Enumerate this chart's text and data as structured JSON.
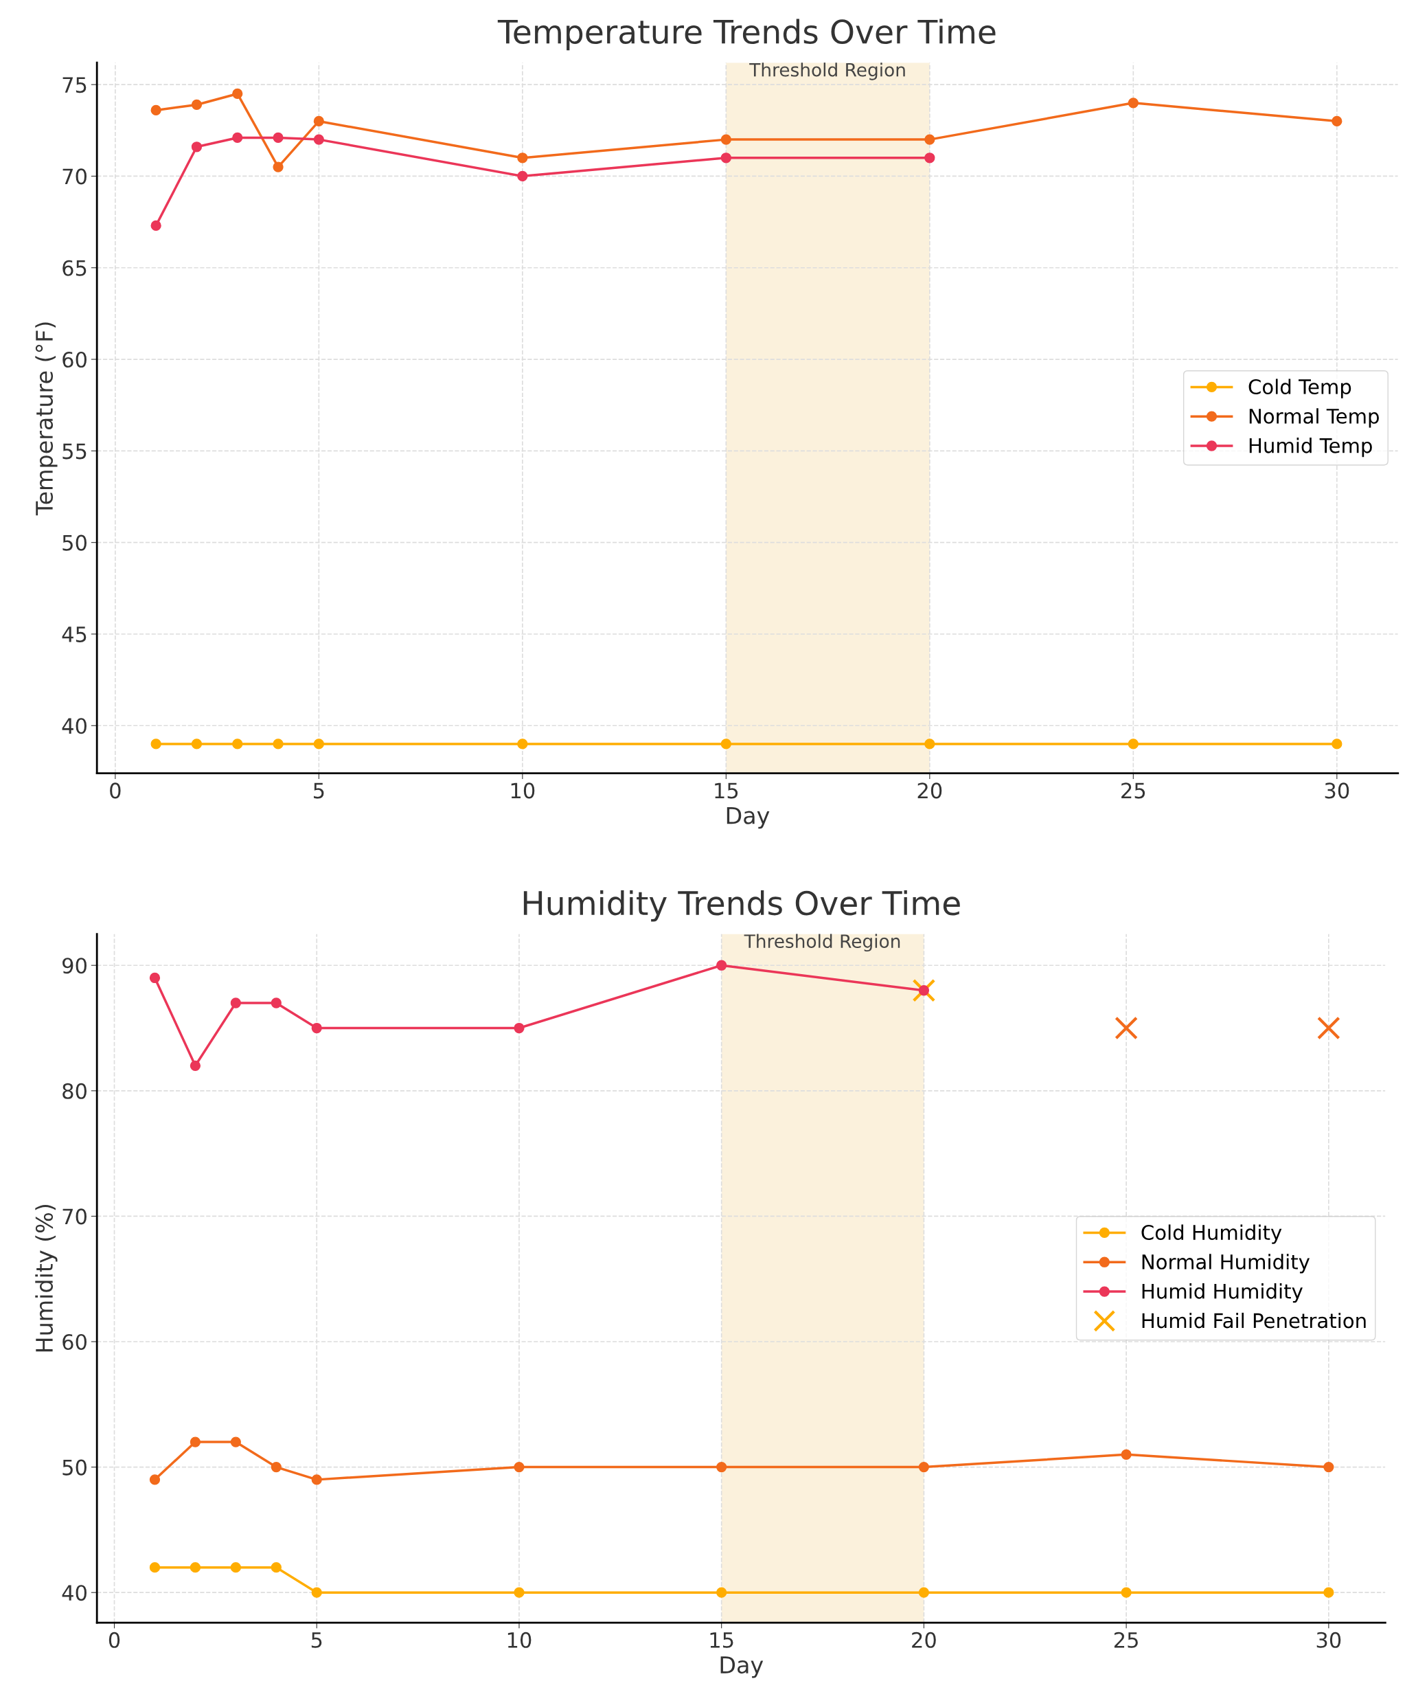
{
  "chart_data": [
    {
      "type": "line",
      "title": "Temperature Trends Over Time",
      "xlabel": "Day",
      "ylabel": "Temperature (°F)",
      "x": [
        1,
        2,
        3,
        4,
        5,
        10,
        15,
        20,
        25,
        30
      ],
      "series": [
        {
          "name": "Cold Temp",
          "color": "#ffad00",
          "values": [
            39,
            39,
            39,
            39,
            39,
            39,
            39,
            39,
            39,
            39
          ]
        },
        {
          "name": "Normal Temp",
          "color": "#f26a1b",
          "values": [
            73.6,
            73.9,
            74.5,
            70.5,
            73,
            71,
            72,
            72,
            74,
            73
          ]
        },
        {
          "name": "Humid Temp",
          "color": "#eb3658",
          "values": [
            67.3,
            71.6,
            72.1,
            72.1,
            72,
            70,
            71,
            71,
            null,
            null
          ]
        }
      ],
      "xlim": [
        -0.45,
        31.5
      ],
      "ylim": [
        37.4,
        76.2
      ],
      "xticks": [
        0,
        5,
        10,
        15,
        20,
        25,
        30
      ],
      "yticks": [
        40,
        45,
        50,
        55,
        60,
        65,
        70,
        75
      ],
      "bands": [
        {
          "axis": "x",
          "from": 15,
          "to": 20,
          "label": "Threshold Region",
          "color": "#fbf1dc"
        }
      ],
      "grid": true,
      "legend": "right",
      "marker": "circle",
      "line_style": "solid"
    },
    {
      "type": "line",
      "title": "Humidity Trends Over Time",
      "xlabel": "Day",
      "ylabel": "Humidity (%)",
      "x": [
        1,
        2,
        3,
        4,
        5,
        10,
        15,
        20,
        25,
        30
      ],
      "series": [
        {
          "name": "Cold Humidity",
          "color": "#ffad00",
          "values": [
            42,
            42,
            42,
            42,
            40,
            40,
            40,
            40,
            40,
            40
          ]
        },
        {
          "name": "Normal Humidity",
          "color": "#f26a1b",
          "values": [
            49,
            52,
            52,
            50,
            49,
            50,
            50,
            50,
            51,
            50
          ]
        },
        {
          "name": "Humid Humidity",
          "color": "#eb3658",
          "values": [
            89,
            82,
            87,
            87,
            85,
            85,
            90,
            88,
            null,
            null
          ]
        },
        {
          "name": "Humid Fail Penetration",
          "type": "scatter",
          "marker": "cross",
          "color": "#ffad00",
          "x": [
            20,
            25,
            30
          ],
          "values": [
            88,
            85,
            85
          ],
          "colors": [
            "#ffad00",
            "#f26a1b",
            "#f26a1b"
          ]
        }
      ],
      "xlim": [
        -0.43,
        31.4
      ],
      "ylim": [
        37.6,
        92.5
      ],
      "xticks": [
        0,
        5,
        10,
        15,
        20,
        25,
        30
      ],
      "yticks": [
        40,
        50,
        60,
        70,
        80,
        90
      ],
      "bands": [
        {
          "axis": "x",
          "from": 15,
          "to": 20,
          "label": "Threshold Region",
          "color": "#fbf1dc"
        }
      ],
      "grid": true,
      "legend": "right",
      "marker": "circle",
      "line_style": "solid"
    }
  ]
}
